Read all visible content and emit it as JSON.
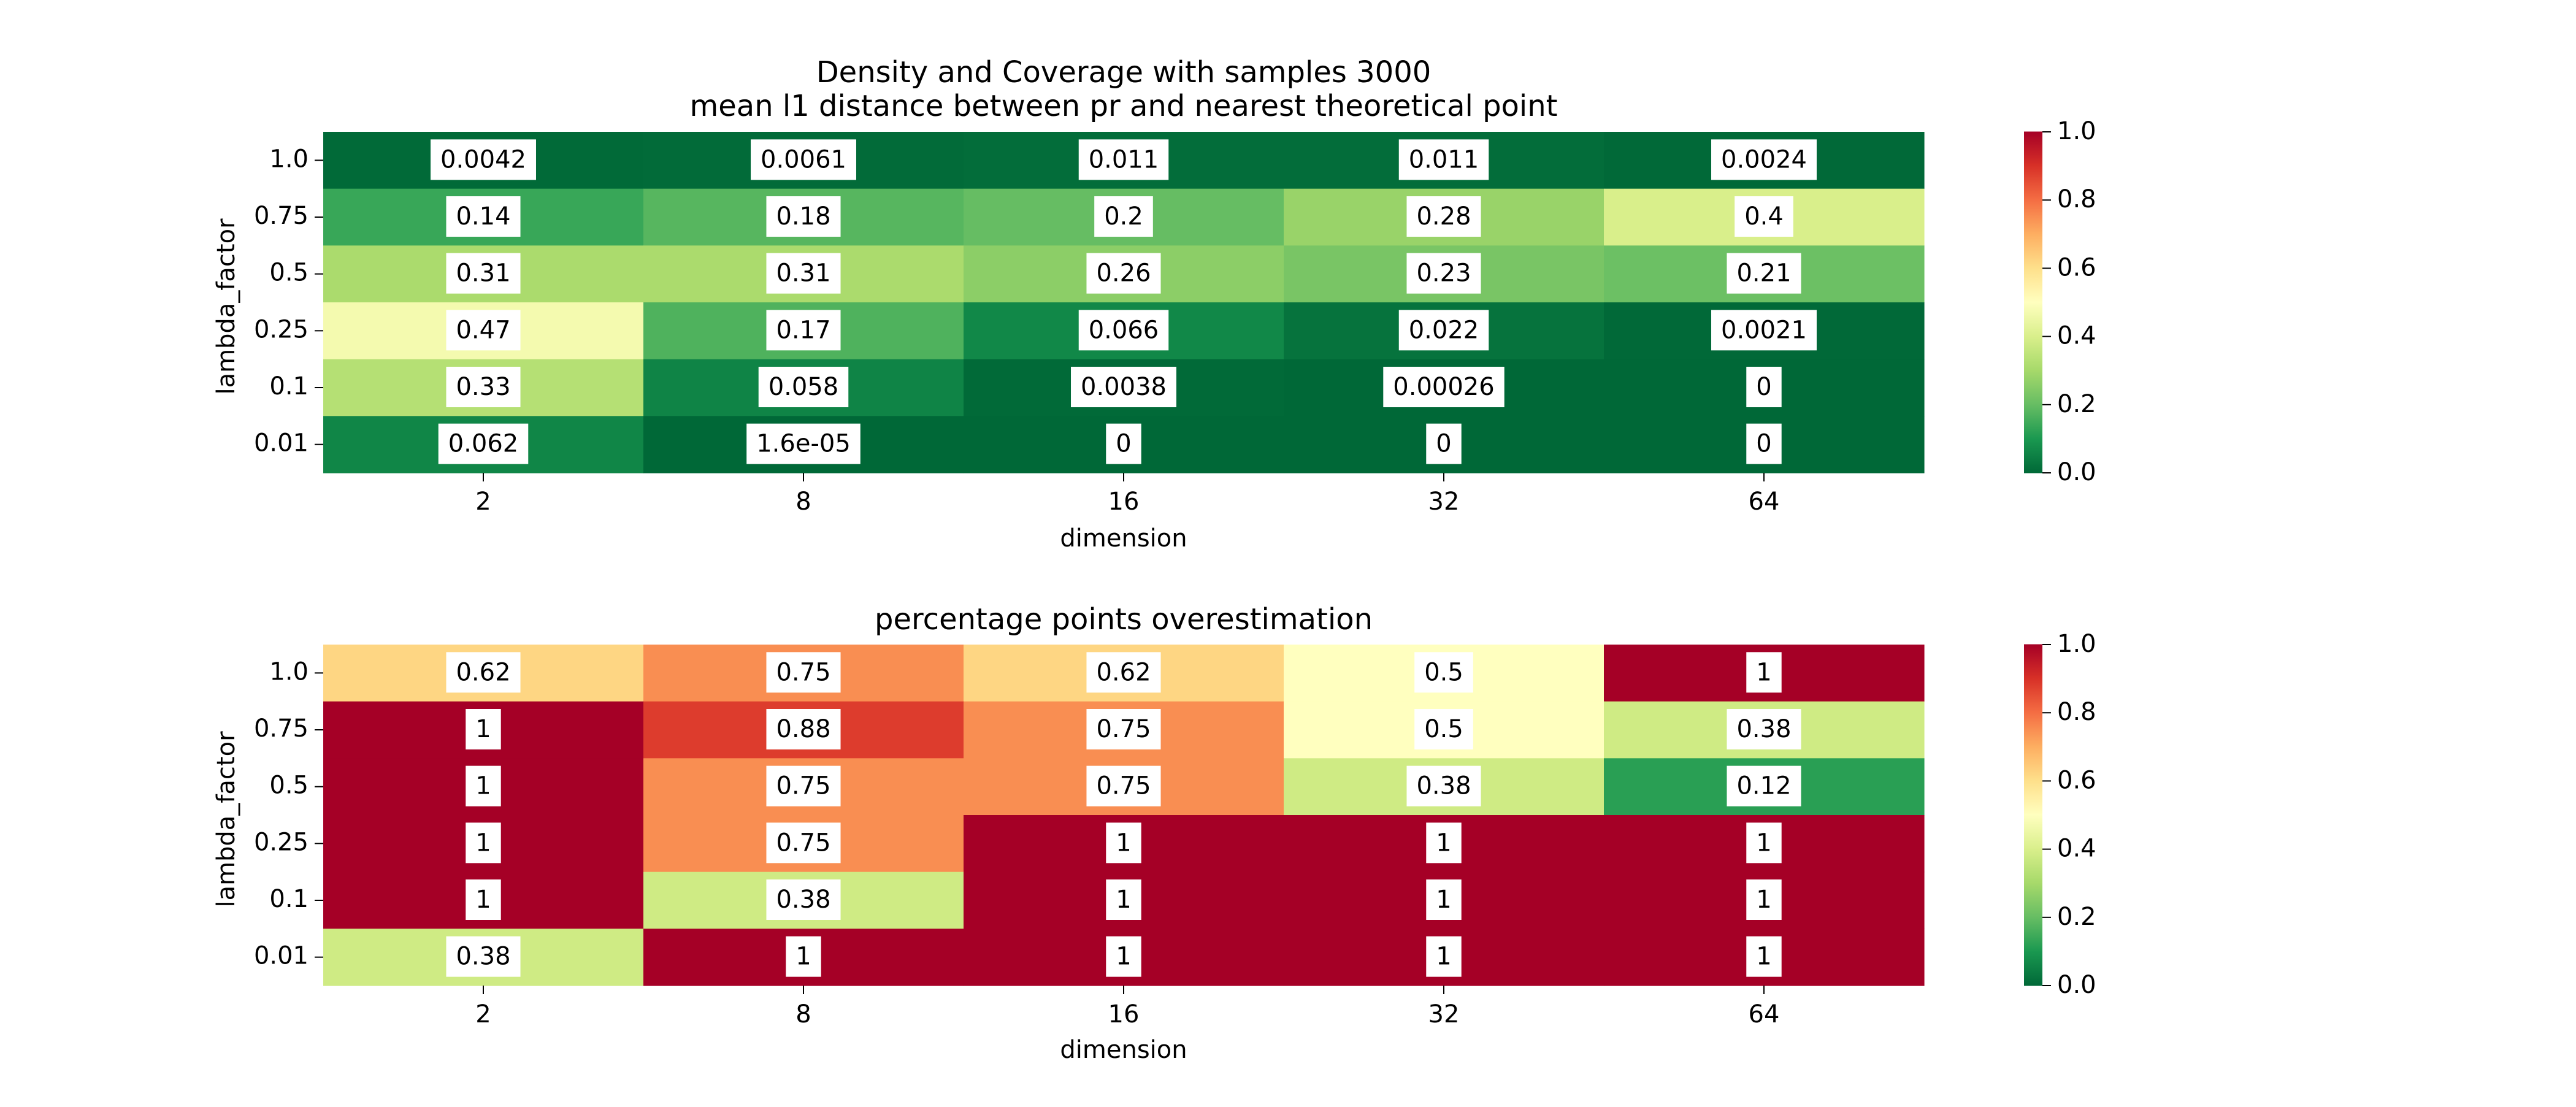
{
  "chart_data": [
    {
      "type": "heatmap",
      "title": "Density and Coverage with samples 3000",
      "subtitle": "mean l1 distance between pr and nearest theoretical point",
      "xlabel": "dimension",
      "ylabel": "lambda_factor",
      "x": [
        "2",
        "8",
        "16",
        "32",
        "64"
      ],
      "y": [
        "1.0",
        "0.75",
        "0.5",
        "0.25",
        "0.1",
        "0.01"
      ],
      "values": [
        [
          0.0042,
          0.0061,
          0.011,
          0.011,
          0.0024
        ],
        [
          0.14,
          0.18,
          0.2,
          0.28,
          0.4
        ],
        [
          0.31,
          0.31,
          0.26,
          0.23,
          0.21
        ],
        [
          0.47,
          0.17,
          0.066,
          0.022,
          0.0021
        ],
        [
          0.33,
          0.058,
          0.0038,
          0.00026,
          0
        ],
        [
          0.062,
          1.6e-05,
          0,
          0,
          0
        ]
      ],
      "labels": [
        [
          "0.0042",
          "0.0061",
          "0.011",
          "0.011",
          "0.0024"
        ],
        [
          "0.14",
          "0.18",
          "0.2",
          "0.28",
          "0.4"
        ],
        [
          "0.31",
          "0.31",
          "0.26",
          "0.23",
          "0.21"
        ],
        [
          "0.47",
          "0.17",
          "0.066",
          "0.022",
          "0.0021"
        ],
        [
          "0.33",
          "0.058",
          "0.0038",
          "0.00026",
          "0"
        ],
        [
          "0.062",
          "1.6e-05",
          "0",
          "0",
          "0"
        ]
      ],
      "colormap": "RdYlGn_r",
      "vmin": 0.0,
      "vmax": 1.0,
      "colorbar_ticks": [
        "0.0",
        "0.2",
        "0.4",
        "0.6",
        "0.8",
        "1.0"
      ]
    },
    {
      "type": "heatmap",
      "title": "percentage points overestimation",
      "xlabel": "dimension",
      "ylabel": "lambda_factor",
      "x": [
        "2",
        "8",
        "16",
        "32",
        "64"
      ],
      "y": [
        "1.0",
        "0.75",
        "0.5",
        "0.25",
        "0.1",
        "0.01"
      ],
      "values": [
        [
          0.62,
          0.75,
          0.62,
          0.5,
          1
        ],
        [
          1,
          0.88,
          0.75,
          0.5,
          0.38
        ],
        [
          1,
          0.75,
          0.75,
          0.38,
          0.12
        ],
        [
          1,
          0.75,
          1,
          1,
          1
        ],
        [
          1,
          0.38,
          1,
          1,
          1
        ],
        [
          0.38,
          1,
          1,
          1,
          1
        ]
      ],
      "labels": [
        [
          "0.62",
          "0.75",
          "0.62",
          "0.5",
          "1"
        ],
        [
          "1",
          "0.88",
          "0.75",
          "0.5",
          "0.38"
        ],
        [
          "1",
          "0.75",
          "0.75",
          "0.38",
          "0.12"
        ],
        [
          "1",
          "0.75",
          "1",
          "1",
          "1"
        ],
        [
          "1",
          "0.38",
          "1",
          "1",
          "1"
        ],
        [
          "0.38",
          "1",
          "1",
          "1",
          "1"
        ]
      ],
      "colormap": "RdYlGn_r",
      "vmin": 0.0,
      "vmax": 1.0,
      "colorbar_ticks": [
        "0.0",
        "0.2",
        "0.4",
        "0.6",
        "0.8",
        "1.0"
      ]
    }
  ]
}
